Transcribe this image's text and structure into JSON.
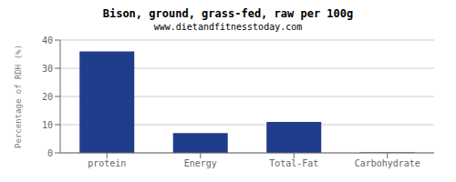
{
  "chart_data": {
    "type": "bar",
    "title": "Bison, ground, grass-fed, raw per 100g",
    "subtitle": "www.dietandfitnesstoday.com",
    "categories": [
      "protein",
      "Energy",
      "Total-Fat",
      "Carbohydrate"
    ],
    "values": [
      36,
      7,
      11,
      0.2
    ],
    "color": "#1F3D8A",
    "ylabel": "Percentage of RDH (%)",
    "ylim": [
      0,
      40
    ],
    "yticks": [
      0,
      10,
      20,
      30,
      40
    ],
    "grid": true
  }
}
